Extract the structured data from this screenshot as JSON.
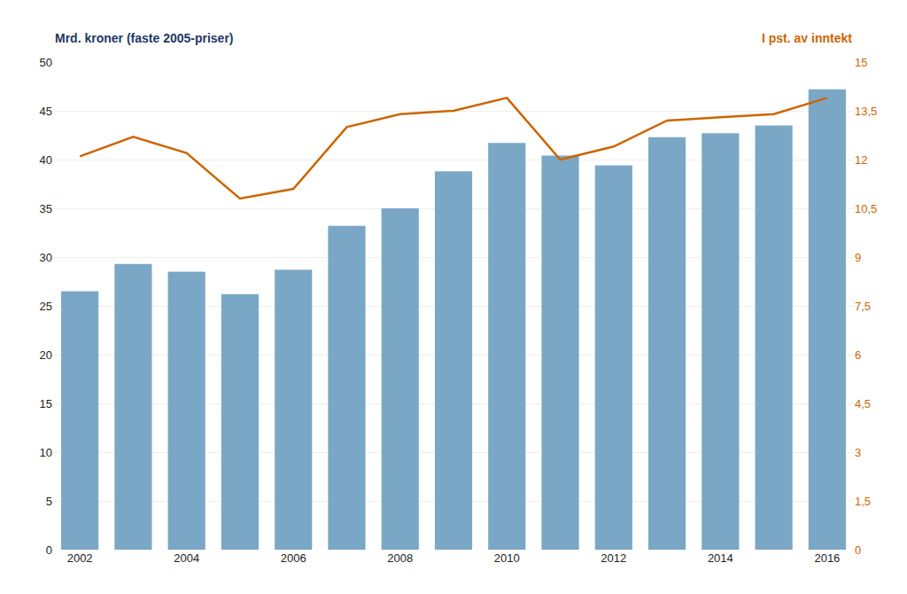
{
  "chart_data": {
    "type": "bar",
    "categories": [
      "2002",
      null,
      "2004",
      null,
      "2006",
      null,
      "2008",
      null,
      "2010",
      null,
      "2012",
      null,
      "2014",
      null,
      "2016"
    ],
    "series": [
      {
        "type": "bar",
        "color": "#7BA7C7",
        "values": [
          26.5,
          29.3,
          28.5,
          26.2,
          28.7,
          33.2,
          35.0,
          38.8,
          41.7,
          40.4,
          39.4,
          42.3,
          42.7,
          43.5,
          47.2
        ]
      },
      {
        "type": "line",
        "color": "#CC6600",
        "axis": "y2",
        "values": [
          12.1,
          12.7,
          12.2,
          10.8,
          11.1,
          13.0,
          13.4,
          13.5,
          13.9,
          12.0,
          12.4,
          13.2,
          13.3,
          13.4,
          13.9
        ]
      }
    ],
    "ylabel": "Mrd. kroner (faste 2005-priser)",
    "y2label": "I pst. av inntekt",
    "ylim": [
      0,
      50
    ],
    "yticks": [
      0,
      5,
      10,
      15,
      20,
      25,
      30,
      35,
      40,
      45,
      50
    ],
    "y2lim": [
      0,
      15
    ],
    "y2ticks": [
      0,
      {
        "value": 1.5,
        "label": "1,5"
      },
      3,
      {
        "value": 4.5,
        "label": "4,5"
      },
      6,
      {
        "value": 7.5,
        "label": "7,5"
      },
      9,
      {
        "value": 10.5,
        "label": "10,5"
      },
      12,
      {
        "value": 13.5,
        "label": "13,5"
      },
      15
    ],
    "grid": true
  }
}
